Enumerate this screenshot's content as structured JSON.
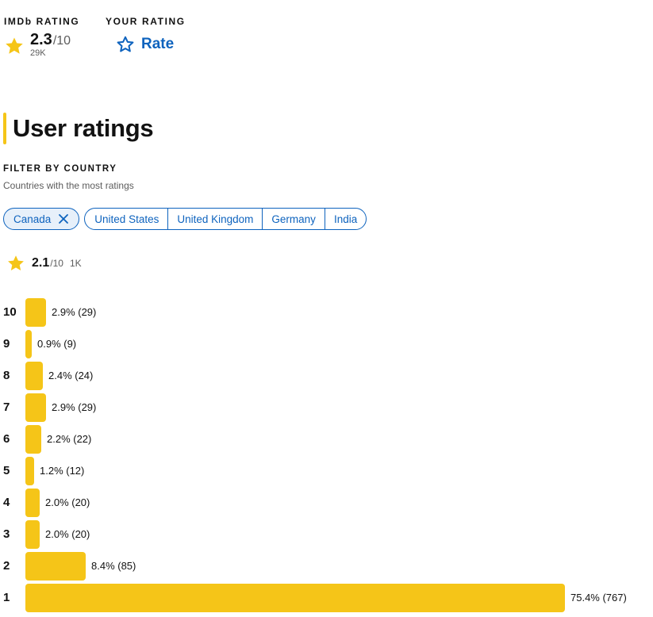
{
  "header": {
    "imdb_rating_label": "IMDb RATING",
    "imdb_rating_value": "2.3",
    "imdb_rating_outof": "/10",
    "imdb_rating_count": "29K",
    "your_rating_label": "YOUR RATING",
    "rate_label": "Rate"
  },
  "section": {
    "title": "User ratings"
  },
  "filter": {
    "label": "FILTER BY COUNTRY",
    "subtitle": "Countries with the most ratings",
    "selected_country": "Canada",
    "countries": [
      "United States",
      "United Kingdom",
      "Germany",
      "India"
    ]
  },
  "country_rating": {
    "value": "2.1",
    "outof": "/10",
    "count": "1K"
  },
  "colors": {
    "accent_yellow": "#f5c518",
    "link_blue": "#0e63be",
    "chip_bg": "#e7f0fa",
    "text_primary": "#121212",
    "text_secondary": "#5c5c5c"
  },
  "icons": {
    "rating_star": "star-filled-icon",
    "rate_star": "star-outline-icon",
    "chip_remove": "close-icon"
  },
  "chart_data": {
    "type": "bar",
    "orientation": "horizontal",
    "categories": [
      "10",
      "9",
      "8",
      "7",
      "6",
      "5",
      "4",
      "3",
      "2",
      "1"
    ],
    "values": [
      2.9,
      0.9,
      2.4,
      2.9,
      2.2,
      1.2,
      2.0,
      2.0,
      8.4,
      75.4
    ],
    "counts": [
      29,
      9,
      24,
      29,
      22,
      12,
      20,
      20,
      85,
      767
    ],
    "labels": [
      "2.9% (29)",
      "0.9% (9)",
      "2.4% (24)",
      "2.9% (29)",
      "2.2% (22)",
      "1.2% (12)",
      "2.0% (20)",
      "2.0% (20)",
      "8.4% (85)",
      "75.4% (767)"
    ]
  }
}
